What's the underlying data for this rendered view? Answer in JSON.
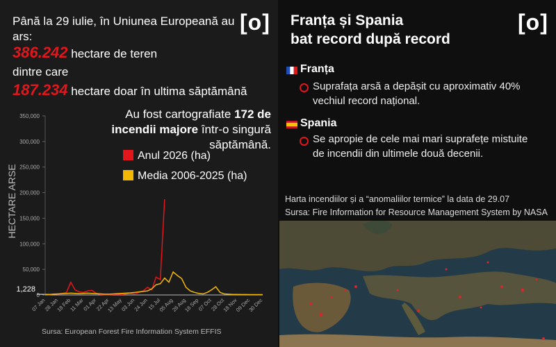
{
  "left": {
    "logo": "[o]",
    "intro": "Până la 29 iulie, în Uniunea Europeană au ars:",
    "total": "386.242",
    "total_text": " hectare de teren",
    "between": "dintre care",
    "week": "187.234",
    "week_text": " hectare doar în ultima săptămână",
    "fires_pre": "Au fost cartografiate ",
    "fires_bold": "172 de incendii majore",
    "fires_post": " într-o singură săptămână."
  },
  "chart_data": {
    "type": "line",
    "ylabel": "HECTARE ARSE",
    "source": "Sursa: European Forest Fire Information System EFFIS",
    "categories": [
      "07 Jan",
      null,
      null,
      "28 Jan",
      null,
      null,
      "18 Feb",
      null,
      null,
      "11 Mar",
      null,
      null,
      "01 Apr",
      null,
      null,
      "22 Apr",
      null,
      null,
      "13 May",
      null,
      null,
      "03 Jun",
      null,
      null,
      "24 Jun",
      null,
      null,
      "15 Jul",
      null,
      null,
      "05 Aug",
      null,
      null,
      "26 Aug",
      null,
      null,
      "16 Sep",
      null,
      null,
      "07 Oct",
      null,
      null,
      "28 Oct",
      null,
      null,
      "18 Nov",
      null,
      null,
      "09 Dec",
      null,
      null,
      "30 Dec"
    ],
    "series": [
      {
        "name": "Anul 2026 (ha)",
        "color": "#e3161b",
        "values": [
          1000,
          500,
          2000,
          1500,
          3000,
          5000,
          25000,
          10000,
          6000,
          5000,
          8000,
          9000,
          3000,
          1000,
          500,
          500,
          1000,
          1500,
          1000,
          2000,
          3000,
          2000,
          5000,
          8000,
          15000,
          10000,
          35000,
          30000,
          187234,
          null,
          null,
          null,
          null,
          null,
          null,
          null,
          null,
          null,
          null,
          null,
          null,
          null,
          null,
          null,
          null,
          null,
          null,
          null,
          null,
          null,
          null,
          null
        ]
      },
      {
        "name": "Media 2006-2025 (ha)",
        "color": "#f5b800",
        "values": [
          1228,
          1000,
          1500,
          2000,
          2500,
          3000,
          3500,
          3000,
          2500,
          3000,
          3500,
          3000,
          2500,
          2000,
          1500,
          1500,
          2000,
          2500,
          3000,
          3500,
          4000,
          5000,
          6000,
          7000,
          8000,
          12000,
          20000,
          22000,
          33000,
          25000,
          45000,
          38000,
          32000,
          15000,
          8000,
          5000,
          3000,
          2000,
          5000,
          10000,
          16000,
          5000,
          2000,
          1500,
          1000,
          1000,
          800,
          800,
          700,
          700,
          600,
          600
        ]
      }
    ],
    "ylim": [
      0,
      350000
    ],
    "yticks": [
      0,
      {
        "value": 50000,
        "label": "50,000"
      },
      {
        "value": 100000,
        "label": "100,000"
      },
      {
        "value": 150000,
        "label": "150,000"
      },
      {
        "value": 200000,
        "label": "200,000"
      },
      {
        "value": 250000,
        "label": "250,000"
      },
      {
        "value": 300000,
        "label": "300,000"
      },
      {
        "value": 350000,
        "label": "350,000"
      }
    ],
    "y_annotation": {
      "value": 1228,
      "label": "1,228"
    },
    "grid": false
  },
  "right": {
    "logo": "[o]",
    "title_1": "Franța și Spania",
    "title_2": "bat record după record",
    "france": "Franța",
    "france_text": "Suprafața arsă a depășit cu aproximativ 40% vechiul record național.",
    "spain": "Spania",
    "spain_text": "Se apropie de cele mai mari suprafețe mistuite de incendii din ultimele două decenii.",
    "map_caption": "Harta incendiilor și a “anomaliilor termice” la data de 29.07",
    "map_source": "Sursa: Fire Information for Resource Management System by NASA"
  }
}
